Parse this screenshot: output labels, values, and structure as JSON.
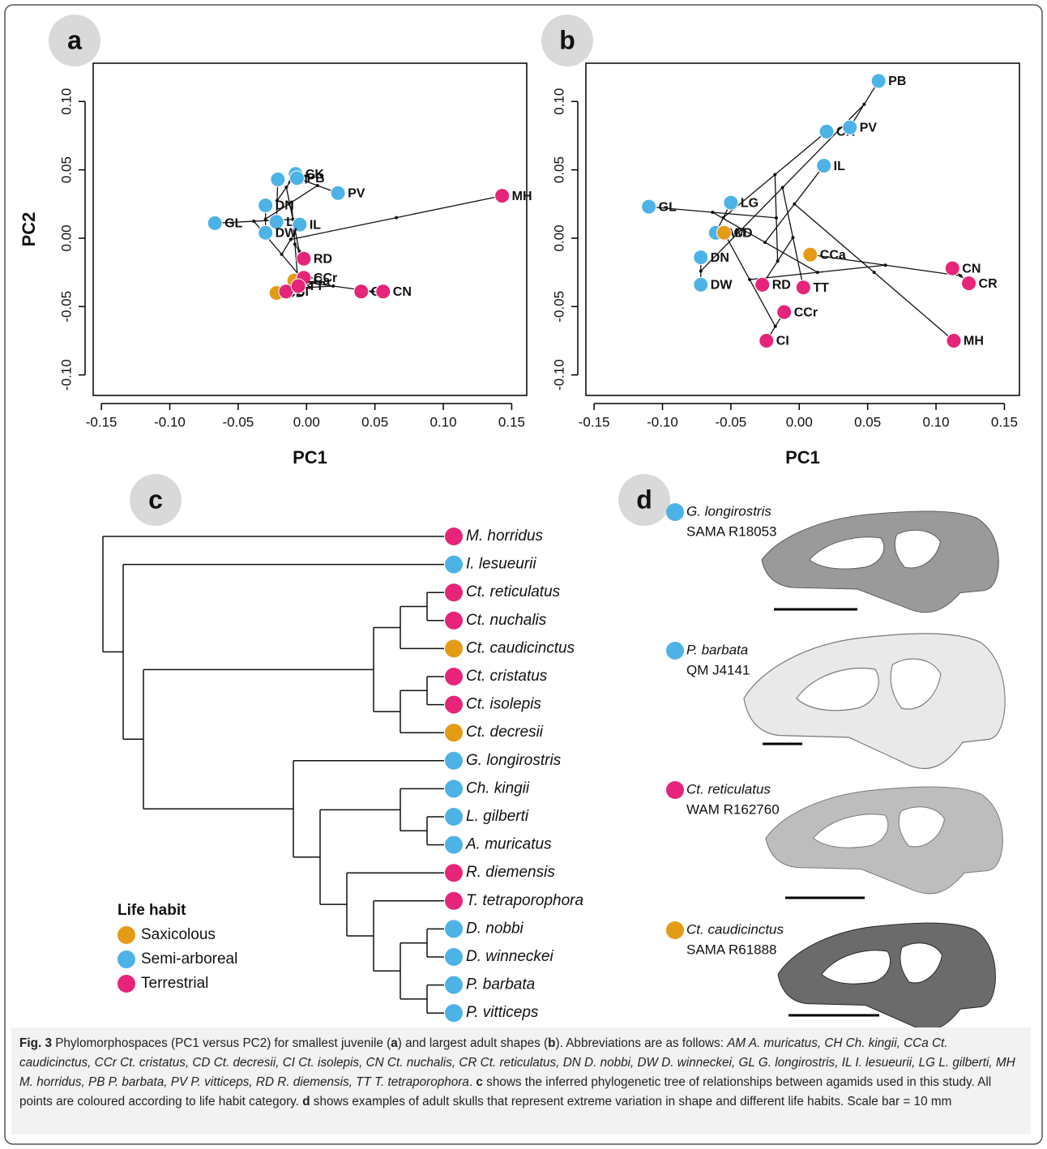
{
  "chart_data": [
    {
      "type": "scatter",
      "panel": "a",
      "xlabel": "PC1",
      "ylabel": "PC2",
      "xlim": [
        -0.156,
        0.161
      ],
      "ylim": [
        -0.115,
        0.128
      ],
      "xticks": [
        {
          "value": -0.15,
          "label": "-0.15"
        },
        {
          "value": -0.1,
          "label": "-0.10"
        },
        {
          "value": -0.05,
          "label": "-0.05"
        },
        {
          "value": 0,
          "label": "0.00"
        },
        {
          "value": 0.05,
          "label": "0.05"
        },
        {
          "value": 0.1,
          "label": "0.10"
        },
        {
          "value": 0.15,
          "label": "0.15"
        }
      ],
      "yticks": [
        {
          "value": -0.1,
          "label": "-0.10"
        },
        {
          "value": -0.05,
          "label": "-0.05"
        },
        {
          "value": 0,
          "label": "0.00"
        },
        {
          "value": 0.05,
          "label": "0.05"
        },
        {
          "value": 0.1,
          "label": "0.10"
        }
      ],
      "labels": [
        "MH",
        "AM",
        "CK",
        "PB",
        "PV",
        "DN",
        "LG",
        "IL",
        "GL",
        "DW",
        "RD",
        "CCa",
        "CCr",
        "CD",
        "CI",
        "TT",
        "CR",
        "CN"
      ],
      "x": [
        0.143,
        -0.021,
        -0.008,
        -0.007,
        0.023,
        -0.03,
        -0.022,
        -0.005,
        -0.067,
        -0.03,
        -0.002,
        -0.009,
        -0.002,
        -0.022,
        -0.015,
        -0.006,
        0.04,
        0.056
      ],
      "y": [
        0.031,
        0.043,
        0.047,
        0.044,
        0.033,
        0.024,
        0.012,
        0.01,
        0.011,
        0.004,
        -0.015,
        -0.031,
        -0.029,
        -0.04,
        -0.039,
        -0.035,
        -0.039,
        -0.039
      ],
      "colors": [
        "#e5247a",
        "#4db3e6",
        "#4db3e6",
        "#4db3e6",
        "#4db3e6",
        "#4db3e6",
        "#4db3e6",
        "#4db3e6",
        "#4db3e6",
        "#4db3e6",
        "#e5247a",
        "#e49b16",
        "#e5247a",
        "#e49b16",
        "#e5247a",
        "#e5247a",
        "#e5247a",
        "#e5247a"
      ]
    },
    {
      "type": "scatter",
      "panel": "b",
      "xlabel": "PC1",
      "xlim": [
        -0.156,
        0.161
      ],
      "ylim": [
        -0.115,
        0.128
      ],
      "xticks": [
        {
          "value": -0.15,
          "label": "-0.15"
        },
        {
          "value": -0.1,
          "label": "-0.10"
        },
        {
          "value": -0.05,
          "label": "-0.05"
        },
        {
          "value": 0,
          "label": "0.00"
        },
        {
          "value": 0.05,
          "label": "0.05"
        },
        {
          "value": 0.1,
          "label": "0.10"
        },
        {
          "value": 0.15,
          "label": "0.15"
        }
      ],
      "yticks": [
        {
          "value": -0.1,
          "label": "-0.10"
        },
        {
          "value": -0.05,
          "label": "-0.05"
        },
        {
          "value": 0,
          "label": "0.00"
        },
        {
          "value": 0.05,
          "label": "0.05"
        },
        {
          "value": 0.1,
          "label": "0.10"
        }
      ],
      "labels": [
        "PB",
        "CK",
        "PV",
        "IL",
        "LG",
        "GL",
        "AM",
        "CD",
        "DN",
        "CCa",
        "CN",
        "CR",
        "DW",
        "RD",
        "TT",
        "CCr",
        "CI",
        "MH"
      ],
      "x": [
        0.058,
        0.02,
        0.037,
        0.018,
        -0.05,
        -0.11,
        -0.061,
        -0.055,
        -0.072,
        0.008,
        0.112,
        0.124,
        -0.072,
        -0.027,
        0.003,
        -0.011,
        -0.024,
        0.113
      ],
      "y": [
        0.115,
        0.078,
        0.081,
        0.053,
        0.026,
        0.023,
        0.004,
        0.004,
        -0.014,
        -0.012,
        -0.022,
        -0.033,
        -0.034,
        -0.034,
        -0.036,
        -0.054,
        -0.075,
        -0.075
      ],
      "colors": [
        "#4db3e6",
        "#4db3e6",
        "#4db3e6",
        "#4db3e6",
        "#4db3e6",
        "#4db3e6",
        "#4db3e6",
        "#e49b16",
        "#4db3e6",
        "#e49b16",
        "#e5247a",
        "#e5247a",
        "#4db3e6",
        "#e5247a",
        "#e5247a",
        "#e5247a",
        "#e5247a",
        "#e5247a"
      ]
    }
  ],
  "tree": {
    "panel": "c",
    "children": [
      {
        "label": "M. horridus",
        "code": "MH",
        "color": "#e5247a"
      },
      {
        "children": [
          {
            "label": "I. lesueurii",
            "code": "IL",
            "color": "#4db3e6"
          },
          {
            "children": [
              {
                "children": [
                  {
                    "children": [
                      {
                        "children": [
                          {
                            "label": "Ct. reticulatus",
                            "code": "CR",
                            "color": "#e5247a"
                          },
                          {
                            "label": "Ct. nuchalis",
                            "code": "CN",
                            "color": "#e5247a"
                          }
                        ]
                      },
                      {
                        "label": "Ct. caudicinctus",
                        "code": "CCa",
                        "color": "#e49b16"
                      }
                    ]
                  },
                  {
                    "children": [
                      {
                        "children": [
                          {
                            "label": "Ct. cristatus",
                            "code": "CCr",
                            "color": "#e5247a"
                          },
                          {
                            "label": "Ct. isolepis",
                            "code": "CI",
                            "color": "#e5247a"
                          }
                        ]
                      },
                      {
                        "label": "Ct. decresii",
                        "code": "CD",
                        "color": "#e49b16"
                      }
                    ]
                  }
                ]
              },
              {
                "children": [
                  {
                    "label": "G. longirostris",
                    "code": "GL",
                    "color": "#4db3e6"
                  },
                  {
                    "children": [
                      {
                        "children": [
                          {
                            "label": "Ch. kingii",
                            "code": "CK",
                            "color": "#4db3e6"
                          },
                          {
                            "children": [
                              {
                                "label": "L. gilberti",
                                "code": "LG",
                                "color": "#4db3e6"
                              },
                              {
                                "label": "A. muricatus",
                                "code": "AM",
                                "color": "#4db3e6"
                              }
                            ]
                          }
                        ]
                      },
                      {
                        "children": [
                          {
                            "label": "R. diemensis",
                            "code": "RD",
                            "color": "#e5247a"
                          },
                          {
                            "children": [
                              {
                                "label": "T. tetraporophora",
                                "code": "TT",
                                "color": "#e5247a"
                              },
                              {
                                "children": [
                                  {
                                    "children": [
                                      {
                                        "label": "D. nobbi",
                                        "code": "DN",
                                        "color": "#4db3e6"
                                      },
                                      {
                                        "label": "D. winneckei",
                                        "code": "DW",
                                        "color": "#4db3e6"
                                      }
                                    ]
                                  },
                                  {
                                    "children": [
                                      {
                                        "label": "P. barbata",
                                        "code": "PB",
                                        "color": "#4db3e6"
                                      },
                                      {
                                        "label": "P. vitticeps",
                                        "code": "PV",
                                        "color": "#4db3e6"
                                      }
                                    ]
                                  }
                                ]
                              }
                            ]
                          }
                        ]
                      }
                    ]
                  }
                ]
              }
            ]
          }
        ]
      }
    ]
  },
  "legend": {
    "title": "Life habit",
    "entries": [
      {
        "label": "Saxicolous",
        "color": "#e49b16"
      },
      {
        "label": "Semi-arboreal",
        "color": "#4db3e6"
      },
      {
        "label": "Terrestrial",
        "color": "#e5247a"
      }
    ]
  },
  "skulls": {
    "panel": "d",
    "items": [
      {
        "label": "G. longirostris",
        "specimen": "SAMA R18053",
        "color": "#4db3e6"
      },
      {
        "label": "P. barbata",
        "specimen": "QM J4141",
        "color": "#4db3e6"
      },
      {
        "label": "Ct. reticulatus",
        "specimen": "WAM R162760",
        "color": "#e5247a"
      },
      {
        "label": "Ct. caudicinctus",
        "specimen": "SAMA R61888",
        "color": "#e49b16"
      }
    ]
  },
  "caption": [
    {
      "text": "Fig. 3",
      "style": "b"
    },
    {
      "text": " Phylomorphospaces (PC1 versus PC2) for smallest juvenile (",
      "style": ""
    },
    {
      "text": "a",
      "style": "b"
    },
    {
      "text": ") and largest adult shapes (",
      "style": ""
    },
    {
      "text": "b",
      "style": "b"
    },
    {
      "text": "). Abbreviations are as follows: ",
      "style": ""
    },
    {
      "text": "AM A. muricatus, CH Ch. kingii, CCa Ct. caudicinctus, CCr Ct. cristatus, CD Ct. decresii, CI Ct. isolepis, CN Ct. nuchalis, CR Ct. reticulatus, DN D. nobbi, DW D. winneckei, GL G. longirostris, IL I. lesueurii, LG L. gilberti, MH M. horridus, PB P. barbata, PV P. vitticeps, RD R. diemensis, TT T. tetraporophora",
      "style": "i"
    },
    {
      "text": ". ",
      "style": ""
    },
    {
      "text": "c",
      "style": "b"
    },
    {
      "text": " shows the inferred phylogenetic tree of relationships between agamids used in this study. All points are coloured according to life habit category. ",
      "style": ""
    },
    {
      "text": "d",
      "style": "b"
    },
    {
      "text": " shows examples of adult skulls that represent extreme variation in shape and different life habits. Scale bar = 10 mm",
      "style": ""
    }
  ]
}
